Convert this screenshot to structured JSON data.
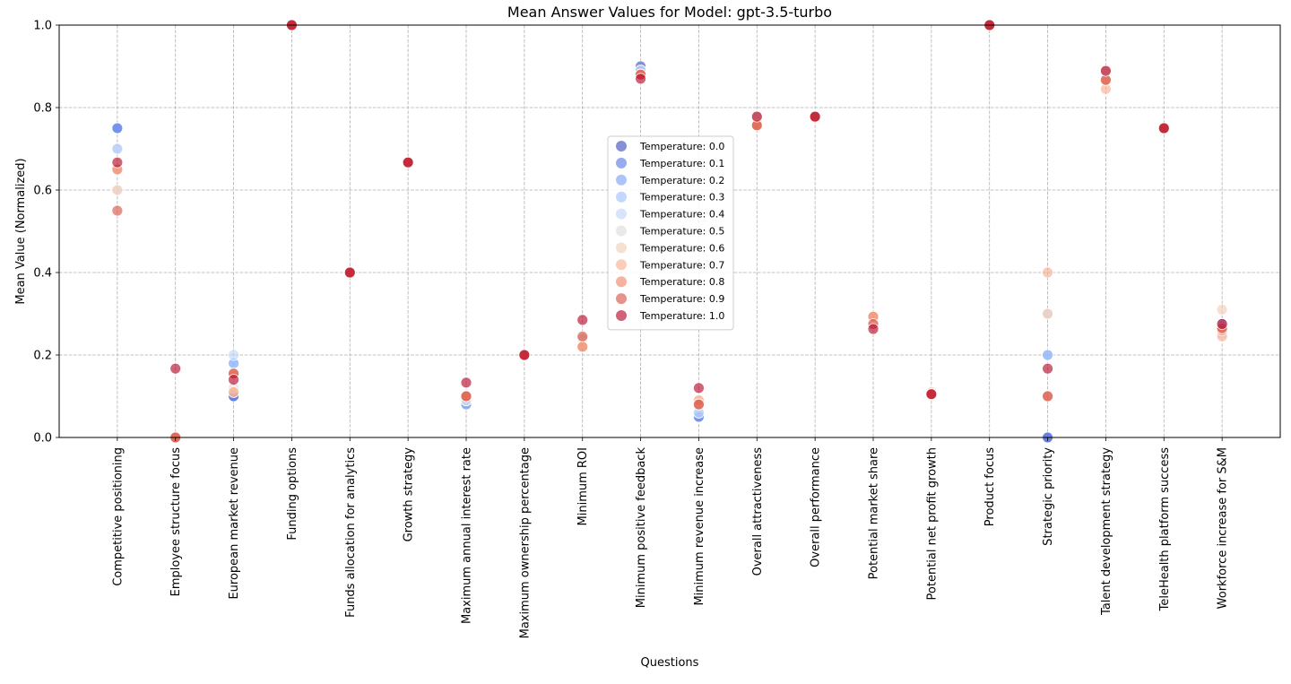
{
  "chart_data": {
    "type": "scatter",
    "title": "Mean Answer Values for Model: gpt-3.5-turbo",
    "xlabel": "Questions",
    "ylabel": "Mean Value (Normalized)",
    "ylim": [
      0,
      1
    ],
    "yticks": [
      "0.0",
      "0.2",
      "0.4",
      "0.6",
      "0.8",
      "1.0"
    ],
    "grid": true,
    "legend_position": "center",
    "categories": [
      "Competitive positioning",
      "Employee structure focus",
      "European market revenue",
      "Funding options",
      "Funds allocation for analytics",
      "Growth strategy",
      "Maximum annual interest rate",
      "Maximum ownership percentage",
      "Minimum ROI",
      "Minimum positive feedback",
      "Minimum revenue increase",
      "Overall attractiveness",
      "Overall performance",
      "Potential market share",
      "Potential net profit growth",
      "Product focus",
      "Strategic priority",
      "Talent development strategy",
      "TeleHealth platform success",
      "Workforce increase for S&M"
    ],
    "series": [
      {
        "name": "Temperature: 0.0",
        "color": "#3b4cc0",
        "values": [
          0.75,
          0.0,
          0.1,
          1.0,
          0.4,
          0.667,
          0.08,
          0.2,
          0.24,
          0.9,
          0.05,
          0.778,
          0.778,
          0.275,
          0.105,
          1.0,
          0.0,
          0.889,
          0.75,
          0.275
        ]
      },
      {
        "name": "Temperature: 0.1",
        "color": "#5977e3",
        "values": [
          0.75,
          0.0,
          0.1,
          1.0,
          0.4,
          0.667,
          0.08,
          0.2,
          0.24,
          0.89,
          0.05,
          0.778,
          0.778,
          0.275,
          0.105,
          1.0,
          0.0,
          0.889,
          0.75,
          0.275
        ]
      },
      {
        "name": "Temperature: 0.2",
        "color": "#7b9ff9",
        "values": [
          0.75,
          0.0,
          0.18,
          1.0,
          0.4,
          0.667,
          0.08,
          0.2,
          0.24,
          0.89,
          0.05,
          0.778,
          0.778,
          0.275,
          0.105,
          1.0,
          0.2,
          0.889,
          0.75,
          0.27
        ]
      },
      {
        "name": "Temperature: 0.3",
        "color": "#9ebeff",
        "values": [
          0.7,
          0.0,
          0.18,
          1.0,
          0.4,
          0.667,
          0.08,
          0.2,
          0.24,
          0.89,
          0.06,
          0.778,
          0.778,
          0.275,
          0.105,
          1.0,
          0.2,
          0.889,
          0.75,
          0.26
        ]
      },
      {
        "name": "Temperature: 0.4",
        "color": "#c0d4f5",
        "values": [
          0.7,
          0.0,
          0.2,
          1.0,
          0.4,
          0.667,
          0.09,
          0.2,
          0.24,
          0.89,
          0.06,
          0.778,
          0.778,
          0.275,
          0.105,
          1.0,
          0.3,
          0.889,
          0.75,
          0.26
        ]
      },
      {
        "name": "Temperature: 0.5",
        "color": "#dddcdc",
        "values": [
          0.6,
          0.0,
          0.12,
          1.0,
          0.4,
          0.667,
          0.09,
          0.2,
          0.24,
          0.88,
          0.08,
          0.778,
          0.778,
          0.28,
          0.105,
          1.0,
          0.3,
          0.889,
          0.75,
          0.25
        ]
      },
      {
        "name": "Temperature: 0.6",
        "color": "#f2cbb7",
        "values": [
          0.6,
          0.0,
          0.11,
          1.0,
          0.4,
          0.667,
          0.1,
          0.2,
          0.24,
          0.88,
          0.09,
          0.778,
          0.778,
          0.28,
          0.11,
          1.0,
          0.3,
          0.889,
          0.75,
          0.31
        ]
      },
      {
        "name": "Temperature: 0.7",
        "color": "#f7ac8e",
        "values": [
          0.65,
          0.0,
          0.11,
          1.0,
          0.4,
          0.667,
          0.1,
          0.2,
          0.22,
          0.88,
          0.09,
          0.757,
          0.778,
          0.293,
          0.105,
          1.0,
          0.4,
          0.845,
          0.75,
          0.245
        ]
      },
      {
        "name": "Temperature: 0.8",
        "color": "#ee8468",
        "values": [
          0.65,
          0.0,
          0.155,
          1.0,
          0.4,
          0.667,
          0.1,
          0.2,
          0.22,
          0.88,
          0.08,
          0.757,
          0.778,
          0.293,
          0.105,
          1.0,
          0.1,
          0.867,
          0.75,
          0.26
        ]
      },
      {
        "name": "Temperature: 0.9",
        "color": "#d65244",
        "values": [
          0.55,
          0.0,
          0.155,
          1.0,
          0.4,
          0.667,
          0.1,
          0.2,
          0.245,
          0.88,
          0.08,
          0.757,
          0.778,
          0.275,
          0.105,
          1.0,
          0.1,
          0.867,
          0.75,
          0.265
        ]
      },
      {
        "name": "Temperature: 1.0",
        "color": "#b40426",
        "values": [
          0.667,
          0.167,
          0.14,
          1.0,
          0.4,
          0.667,
          0.133,
          0.2,
          0.285,
          0.87,
          0.12,
          0.778,
          0.778,
          0.263,
          0.105,
          1.0,
          0.167,
          0.889,
          0.75,
          0.275
        ]
      }
    ]
  }
}
